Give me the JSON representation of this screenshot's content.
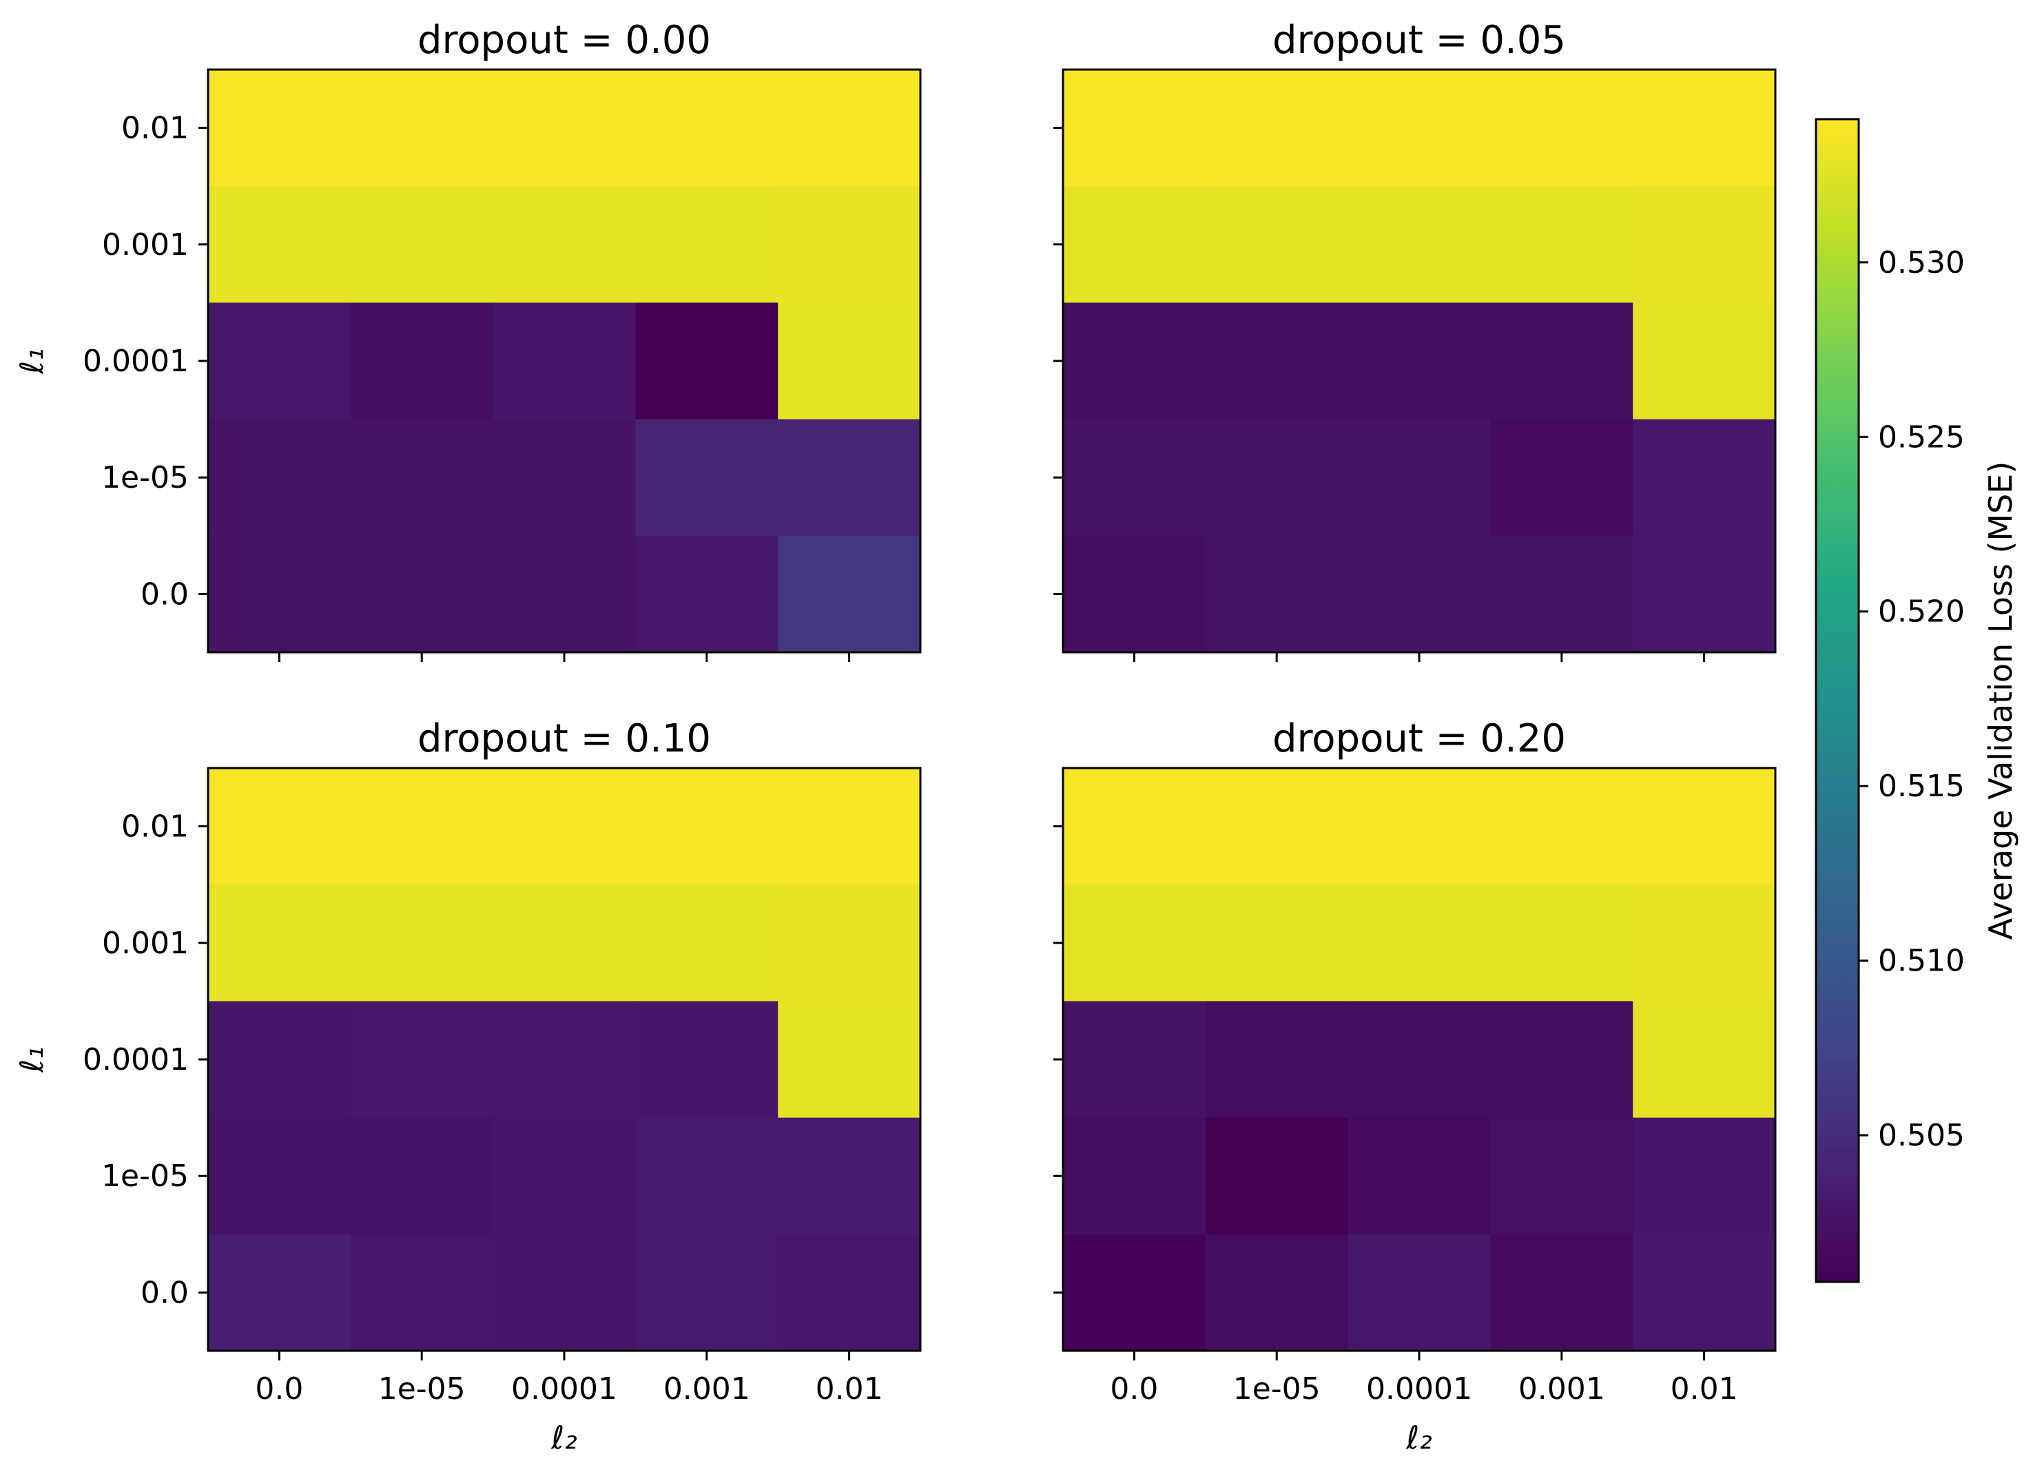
{
  "chart_data": {
    "type": "heatmap",
    "x_tick_labels": [
      "0.0",
      "1e-05",
      "0.0001",
      "0.001",
      "0.01"
    ],
    "y_tick_labels": [
      "0.01",
      "0.001",
      "0.0001",
      "1e-05",
      "0.0"
    ],
    "xlabel": "ℓ₂",
    "ylabel": "ℓ₁",
    "colormap": "viridis",
    "colorbar": {
      "label": "Average Validation Loss (MSE)",
      "vmin": 0.5008,
      "vmax": 0.5341,
      "ticks": [
        0.505,
        0.51,
        0.515,
        0.52,
        0.525,
        0.53
      ],
      "tick_labels": [
        "0.505",
        "0.510",
        "0.515",
        "0.520",
        "0.525",
        "0.530"
      ]
    },
    "panels": [
      {
        "title": "dropout = 0.00",
        "values": [
          [
            0.5338,
            0.5338,
            0.5338,
            0.5338,
            0.5338
          ],
          [
            0.5328,
            0.5328,
            0.5328,
            0.5328,
            0.533
          ],
          [
            0.503,
            0.5022,
            0.5028,
            0.5008,
            0.5328
          ],
          [
            0.5025,
            0.5025,
            0.5025,
            0.5042,
            0.504
          ],
          [
            0.5025,
            0.5025,
            0.5025,
            0.503,
            0.5062
          ]
        ]
      },
      {
        "title": "dropout = 0.05",
        "values": [
          [
            0.5338,
            0.5338,
            0.5338,
            0.5338,
            0.5338
          ],
          [
            0.5328,
            0.5328,
            0.5328,
            0.5328,
            0.533
          ],
          [
            0.5022,
            0.5022,
            0.5022,
            0.5022,
            0.5328
          ],
          [
            0.5025,
            0.5025,
            0.5025,
            0.5018,
            0.503
          ],
          [
            0.502,
            0.5025,
            0.5025,
            0.5025,
            0.503
          ]
        ]
      },
      {
        "title": "dropout = 0.10",
        "values": [
          [
            0.5338,
            0.5338,
            0.5338,
            0.5338,
            0.5338
          ],
          [
            0.5328,
            0.5328,
            0.5328,
            0.5328,
            0.533
          ],
          [
            0.5028,
            0.503,
            0.503,
            0.5028,
            0.5328
          ],
          [
            0.5026,
            0.5026,
            0.5028,
            0.5032,
            0.5034
          ],
          [
            0.5036,
            0.503,
            0.5028,
            0.5032,
            0.503
          ]
        ]
      },
      {
        "title": "dropout = 0.20",
        "values": [
          [
            0.5338,
            0.5338,
            0.5338,
            0.5338,
            0.5338
          ],
          [
            0.5328,
            0.5328,
            0.5328,
            0.5328,
            0.533
          ],
          [
            0.5025,
            0.502,
            0.502,
            0.502,
            0.5328
          ],
          [
            0.502,
            0.5008,
            0.5018,
            0.5023,
            0.5028
          ],
          [
            0.501,
            0.502,
            0.503,
            0.5018,
            0.503
          ]
        ]
      }
    ]
  }
}
